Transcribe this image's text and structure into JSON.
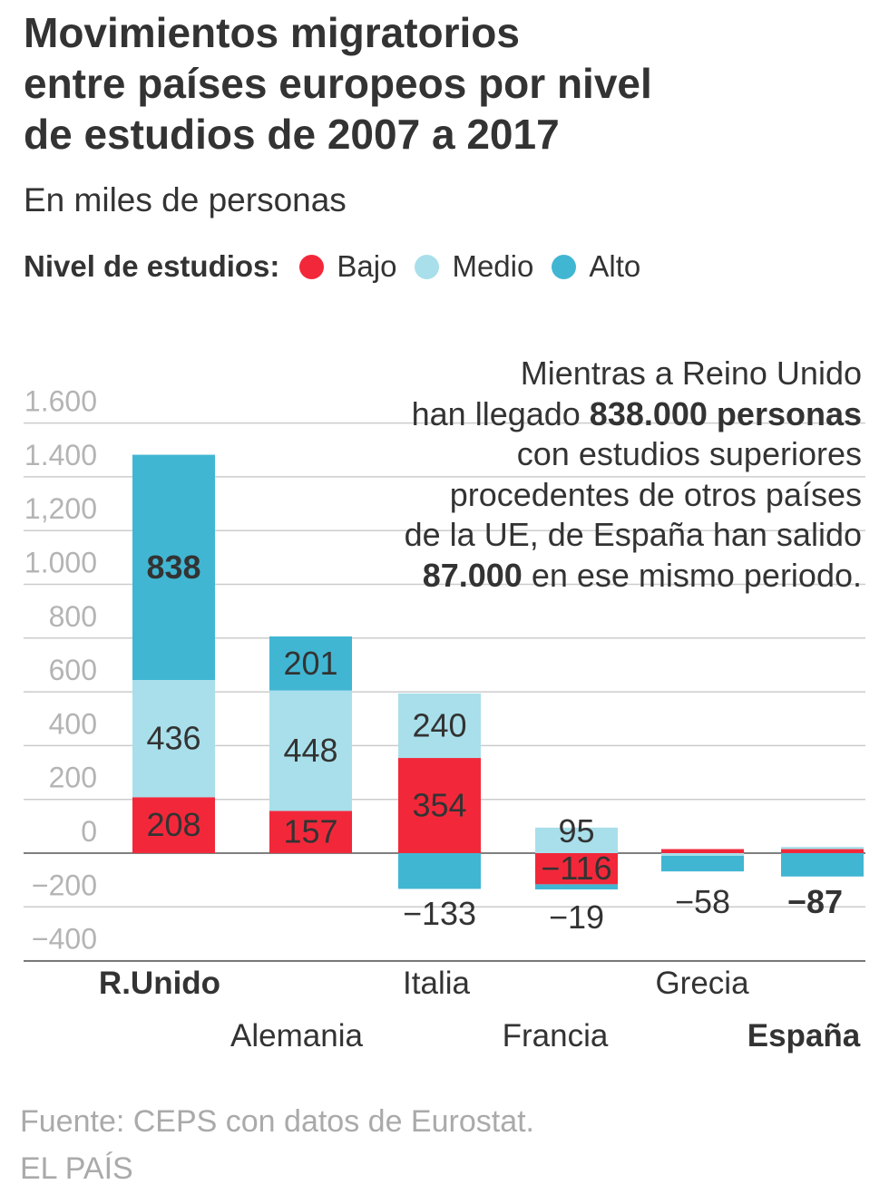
{
  "title_lines": [
    "Movimientos migratorios",
    "entre países europeos por nivel",
    "de estudios de 2007 a 2017"
  ],
  "subtitle": "En miles de personas",
  "legend": {
    "title": "Nivel de estudios:",
    "items": [
      {
        "label": "Bajo",
        "color": "#f2283a"
      },
      {
        "label": "Medio",
        "color": "#a8dfeb"
      },
      {
        "label": "Alto",
        "color": "#41b6d3"
      }
    ]
  },
  "annotation": {
    "line1": "Mientras a Reino Unido",
    "line2_pre": "han llegado ",
    "line2_bold": "838.000 personas",
    "line3": "con estudios superiores",
    "line4": "procedentes de otros países",
    "line5": "de la UE, de España han salido",
    "line6_bold": "87.000",
    "line6_post": " en ese mismo periodo."
  },
  "chart_data": {
    "type": "bar",
    "stacked": true,
    "categories": [
      "R.Unido",
      "Alemania",
      "Italia",
      "Francia",
      "Grecia",
      "España"
    ],
    "bold_categories": [
      "R.Unido",
      "España"
    ],
    "series": [
      {
        "name": "Bajo",
        "color": "#f2283a",
        "values": [
          208,
          157,
          354,
          -116,
          15,
          15
        ]
      },
      {
        "name": "Medio",
        "color": "#a8dfeb",
        "values": [
          436,
          448,
          240,
          95,
          -10,
          8
        ]
      },
      {
        "name": "Alto",
        "color": "#41b6d3",
        "values": [
          838,
          201,
          -133,
          -19,
          -58,
          -87
        ]
      }
    ],
    "data_labels": [
      [
        "208",
        "436",
        "838"
      ],
      [
        "157",
        "448",
        "201"
      ],
      [
        "354",
        "240",
        "−133"
      ],
      [
        "−116",
        "95",
        "−19"
      ],
      [
        "",
        "",
        "−58"
      ],
      [
        "",
        "",
        "−87"
      ]
    ],
    "bold_labels": [
      "838",
      "−87"
    ],
    "yticks": [
      -400,
      -200,
      0,
      200,
      400,
      600,
      800,
      1000,
      1200,
      1400,
      1600
    ],
    "ytick_labels": [
      "−400",
      "−200",
      "0",
      "200",
      "400",
      "600",
      "800",
      "1.000",
      "1,200",
      "1.400",
      "1.600"
    ],
    "ylim": [
      -400,
      1600
    ],
    "grid": true
  },
  "source": "Fuente: CEPS con datos de Eurostat.",
  "brand": "EL PAÍS"
}
